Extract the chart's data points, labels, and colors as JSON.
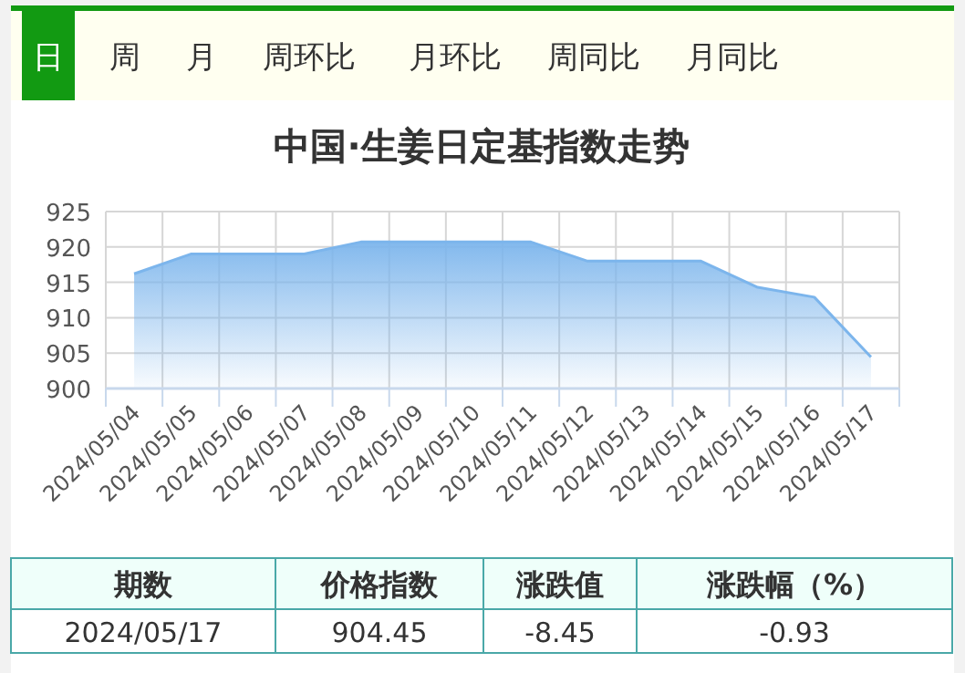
{
  "chart_data": {
    "type": "area",
    "title": "中国·生姜日定基指数走势",
    "categories": [
      "2024/05/04",
      "2024/05/05",
      "2024/05/06",
      "2024/05/07",
      "2024/05/08",
      "2024/05/09",
      "2024/05/10",
      "2024/05/11",
      "2024/05/12",
      "2024/05/13",
      "2024/05/14",
      "2024/05/15",
      "2024/05/16",
      "2024/05/17"
    ],
    "values": [
      916.2,
      919,
      919,
      919,
      920.7,
      920.7,
      920.7,
      920.7,
      918,
      918,
      918,
      914.3,
      912.9,
      904.45
    ],
    "color": "#7cb5ec",
    "ylim": [
      900,
      925
    ],
    "yticks": [
      900,
      905,
      910,
      915,
      920,
      925
    ],
    "grid": true,
    "marker": "none",
    "annotations": [
      "日",
      "周",
      "月",
      "周环比",
      "月环比",
      "周同比",
      "月同比",
      "期数",
      "价格指数",
      "涨跌值",
      "涨跌幅（%）",
      "2024/05/17",
      "904.45",
      "-8.45",
      "-0.93"
    ]
  }
}
